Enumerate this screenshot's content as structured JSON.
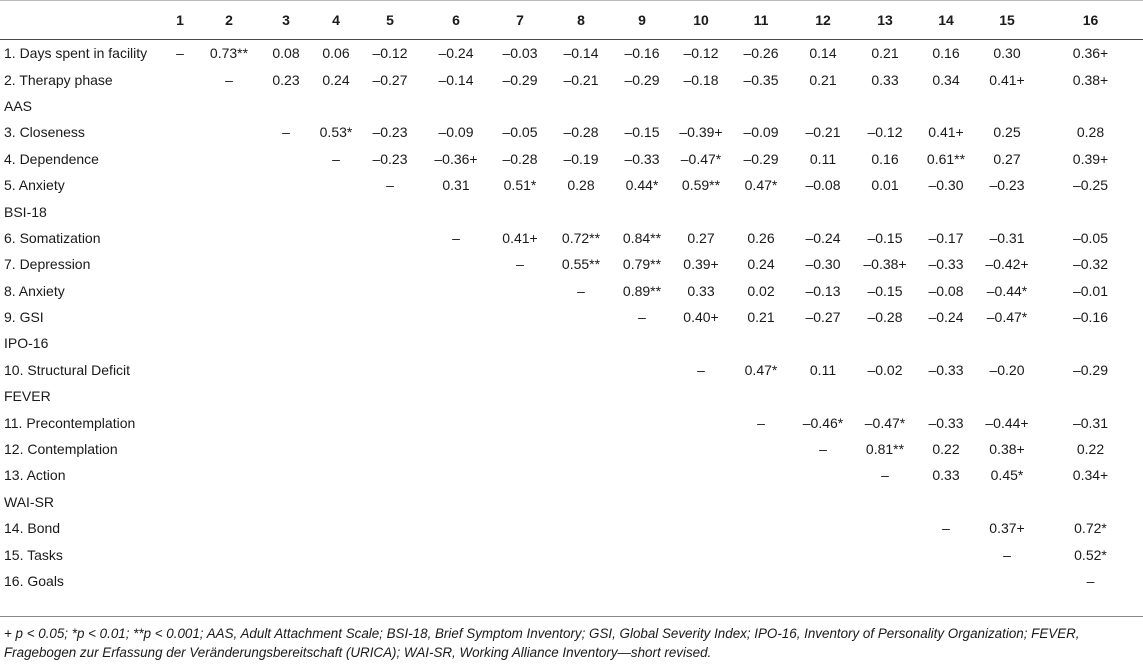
{
  "table": {
    "columns": [
      "",
      "1",
      "2",
      "3",
      "4",
      "5",
      "6",
      "7",
      "8",
      "9",
      "10",
      "11",
      "12",
      "13",
      "14",
      "15",
      "16"
    ],
    "rows": [
      {
        "label": "1. Days spent in facility",
        "cells": [
          "–",
          "0.73**",
          "0.08",
          "0.06",
          "–0.12",
          "–0.24",
          "–0.03",
          "–0.14",
          "–0.16",
          "–0.12",
          "–0.26",
          "0.14",
          "0.21",
          "0.16",
          "0.30",
          "0.36+"
        ]
      },
      {
        "label": "2. Therapy phase",
        "cells": [
          "",
          "–",
          "0.23",
          "0.24",
          "–0.27",
          "–0.14",
          "–0.29",
          "–0.21",
          "–0.29",
          "–0.18",
          "–0.35",
          "0.21",
          "0.33",
          "0.34",
          "0.41+",
          "0.38+"
        ]
      },
      {
        "group": "AAS"
      },
      {
        "label": "3. Closeness",
        "cells": [
          "",
          "",
          "–",
          "0.53*",
          "–0.23",
          "–0.09",
          "–0.05",
          "–0.28",
          "–0.15",
          "–0.39+",
          "–0.09",
          "–0.21",
          "–0.12",
          "0.41+",
          "0.25",
          "0.28"
        ]
      },
      {
        "label": "4. Dependence",
        "cells": [
          "",
          "",
          "",
          "–",
          "–0.23",
          "–0.36+",
          "–0.28",
          "–0.19",
          "–0.33",
          "–0.47*",
          "–0.29",
          "0.11",
          "0.16",
          "0.61**",
          "0.27",
          "0.39+"
        ]
      },
      {
        "label": "5. Anxiety",
        "cells": [
          "",
          "",
          "",
          "",
          "–",
          "0.31",
          "0.51*",
          "0.28",
          "0.44*",
          "0.59**",
          "0.47*",
          "–0.08",
          "0.01",
          "–0.30",
          "–0.23",
          "–0.25"
        ]
      },
      {
        "group": "BSI-18"
      },
      {
        "label": "6. Somatization",
        "cells": [
          "",
          "",
          "",
          "",
          "",
          "–",
          "0.41+",
          "0.72**",
          "0.84**",
          "0.27",
          "0.26",
          "–0.24",
          "–0.15",
          "–0.17",
          "–0.31",
          "–0.05"
        ]
      },
      {
        "label": "7. Depression",
        "cells": [
          "",
          "",
          "",
          "",
          "",
          "",
          "–",
          "0.55**",
          "0.79**",
          "0.39+",
          "0.24",
          "–0.30",
          "–0.38+",
          "–0.33",
          "–0.42+",
          "–0.32"
        ]
      },
      {
        "label": "8. Anxiety",
        "cells": [
          "",
          "",
          "",
          "",
          "",
          "",
          "",
          "–",
          "0.89**",
          "0.33",
          "0.02",
          "–0.13",
          "–0.15",
          "–0.08",
          "–0.44*",
          "–0.01"
        ]
      },
      {
        "label": "9. GSI",
        "cells": [
          "",
          "",
          "",
          "",
          "",
          "",
          "",
          "",
          "–",
          "0.40+",
          "0.21",
          "–0.27",
          "–0.28",
          "–0.24",
          "–0.47*",
          "–0.16"
        ]
      },
      {
        "group": "IPO-16"
      },
      {
        "label": "10. Structural Deficit",
        "cells": [
          "",
          "",
          "",
          "",
          "",
          "",
          "",
          "",
          "",
          "–",
          "0.47*",
          "0.11",
          "–0.02",
          "–0.33",
          "–0.20",
          "–0.29"
        ]
      },
      {
        "group": "FEVER"
      },
      {
        "label": "11. Precontemplation",
        "cells": [
          "",
          "",
          "",
          "",
          "",
          "",
          "",
          "",
          "",
          "",
          "–",
          "–0.46*",
          "–0.47*",
          "–0.33",
          "–0.44+",
          "–0.31"
        ]
      },
      {
        "label": "12. Contemplation",
        "cells": [
          "",
          "",
          "",
          "",
          "",
          "",
          "",
          "",
          "",
          "",
          "",
          "–",
          "0.81**",
          "0.22",
          "0.38+",
          "0.22"
        ]
      },
      {
        "label": "13. Action",
        "cells": [
          "",
          "",
          "",
          "",
          "",
          "",
          "",
          "",
          "",
          "",
          "",
          "",
          "–",
          "0.33",
          "0.45*",
          "0.34+"
        ]
      },
      {
        "group": "WAI-SR"
      },
      {
        "label": "14. Bond",
        "cells": [
          "",
          "",
          "",
          "",
          "",
          "",
          "",
          "",
          "",
          "",
          "",
          "",
          "",
          "–",
          "0.37+",
          "0.72*"
        ]
      },
      {
        "label": "15. Tasks",
        "cells": [
          "",
          "",
          "",
          "",
          "",
          "",
          "",
          "",
          "",
          "",
          "",
          "",
          "",
          "",
          "–",
          "0.52*"
        ]
      },
      {
        "label": "16. Goals",
        "cells": [
          "",
          "",
          "",
          "",
          "",
          "",
          "",
          "",
          "",
          "",
          "",
          "",
          "",
          "",
          "",
          "–"
        ]
      }
    ]
  },
  "footnote": {
    "line1": "+ p < 0.05; *p < 0.01; **p < 0.001; AAS, Adult Attachment Scale; BSI-18, Brief Symptom Inventory; GSI, Global Severity Index; IPO-16, Inventory of Personality Organization; FEVER,",
    "line2": "Fragebogen zur Erfassung der Veränderungsbereitschaft (URICA); WAI-SR, Working Alliance Inventory—short revised."
  }
}
